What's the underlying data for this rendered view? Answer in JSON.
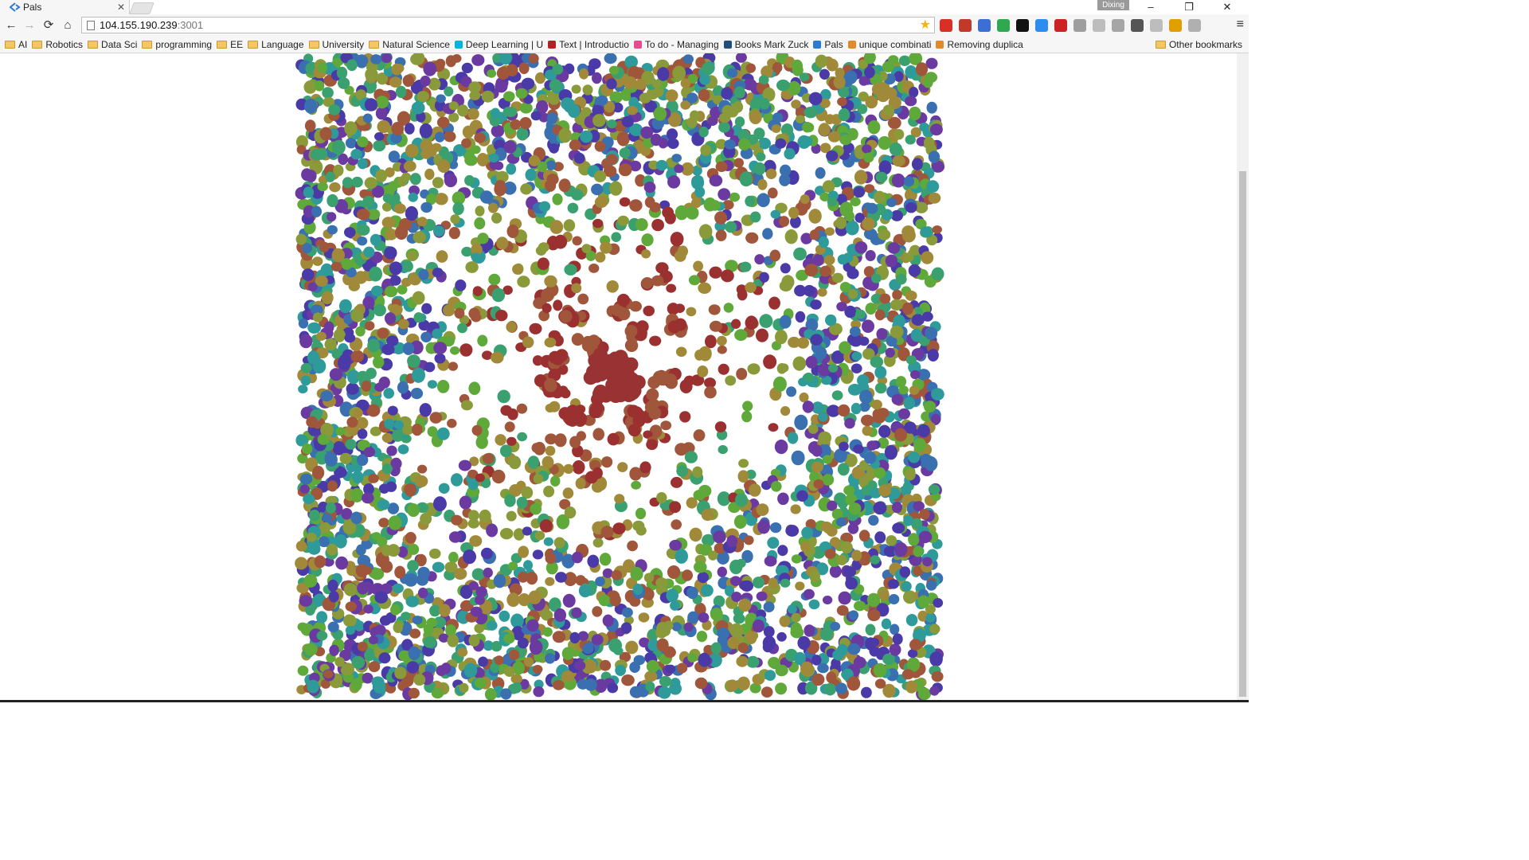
{
  "tab": {
    "title": "Pals",
    "close": "✕"
  },
  "profile": {
    "name": "Dixing"
  },
  "window_controls": {
    "minimize": "–",
    "restore": "❐",
    "close": "✕"
  },
  "nav": {
    "back": "←",
    "forward": "→",
    "reload": "⟳",
    "home": "⌂"
  },
  "address": {
    "host": "104.155.190.239",
    "port": ":3001"
  },
  "star": "★",
  "menu": "≡",
  "bookmarks": [
    {
      "label": "AI",
      "icon": "folder-icon"
    },
    {
      "label": "Robotics",
      "icon": "folder-icon"
    },
    {
      "label": "Data Sci",
      "icon": "folder-icon"
    },
    {
      "label": "programming",
      "icon": "folder-icon"
    },
    {
      "label": "EE",
      "icon": "folder-icon"
    },
    {
      "label": "Language",
      "icon": "folder-icon"
    },
    {
      "label": "University",
      "icon": "folder-icon"
    },
    {
      "label": "Natural Science",
      "icon": "folder-icon"
    },
    {
      "label": "Deep Learning | U",
      "icon": "udacity-icon"
    },
    {
      "label": "Text | Introductio",
      "icon": "s-icon"
    },
    {
      "label": "To do - Managing",
      "icon": "todo-icon"
    },
    {
      "label": "Books Mark Zuck",
      "icon": "bi-icon"
    },
    {
      "label": "Pals",
      "icon": "pals-icon"
    },
    {
      "label": "unique combinati",
      "icon": "stack-icon"
    },
    {
      "label": "Removing duplica",
      "icon": "stack-icon"
    }
  ],
  "other_bookmarks": "Other bookmarks",
  "extension_colors": [
    "#d93025",
    "#c0392b",
    "#3b6fd4",
    "#2fa84f",
    "#111111",
    "#2d8cf0",
    "#cc2222",
    "#9e9e9e",
    "#bdbdbd",
    "#a6a6a6",
    "#555555",
    "#bdbdbd",
    "#e0a000",
    "#b0b0b0"
  ],
  "visualization": {
    "palette": [
      "#4a3aa8",
      "#6b3aa0",
      "#3a6fb0",
      "#2f9a9a",
      "#3aa070",
      "#5fa83a",
      "#8a9a3a",
      "#a08a3a",
      "#a0563a",
      "#9a3030"
    ],
    "core_color": "#993333"
  }
}
